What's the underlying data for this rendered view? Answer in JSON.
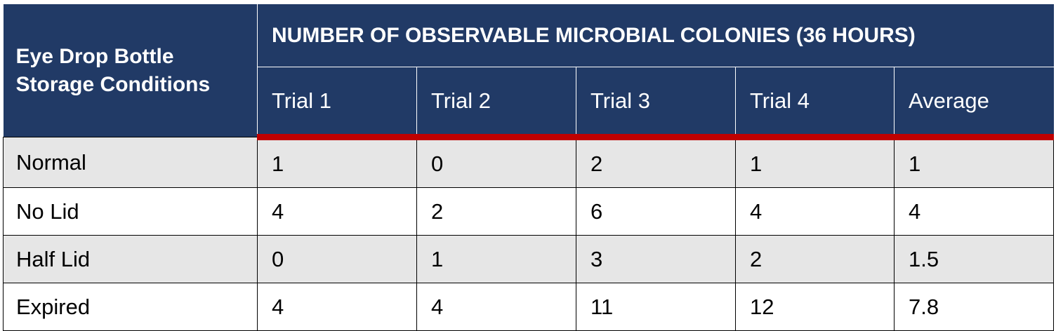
{
  "table": {
    "stub_header": "Eye Drop Bottle Storage Conditions",
    "group_header": "NUMBER OF OBSERVABLE MICROBIAL COLONIES (36 HOURS)",
    "columns": [
      "Trial 1",
      "Trial 2",
      "Trial 3",
      "Trial 4",
      "Average"
    ],
    "rows": [
      {
        "label": "Normal",
        "values": [
          "1",
          "0",
          "2",
          "1",
          "1"
        ]
      },
      {
        "label": "No Lid",
        "values": [
          "4",
          "2",
          "6",
          "4",
          "4"
        ]
      },
      {
        "label": "Half Lid",
        "values": [
          "0",
          "1",
          "3",
          "2",
          "1.5"
        ]
      },
      {
        "label": "Expired",
        "values": [
          "4",
          "4",
          "11",
          "12",
          "7.8"
        ]
      }
    ],
    "colors": {
      "header_bg": "#213a66",
      "header_rule": "#c00000",
      "alt_row": "#e6e6e6"
    }
  }
}
